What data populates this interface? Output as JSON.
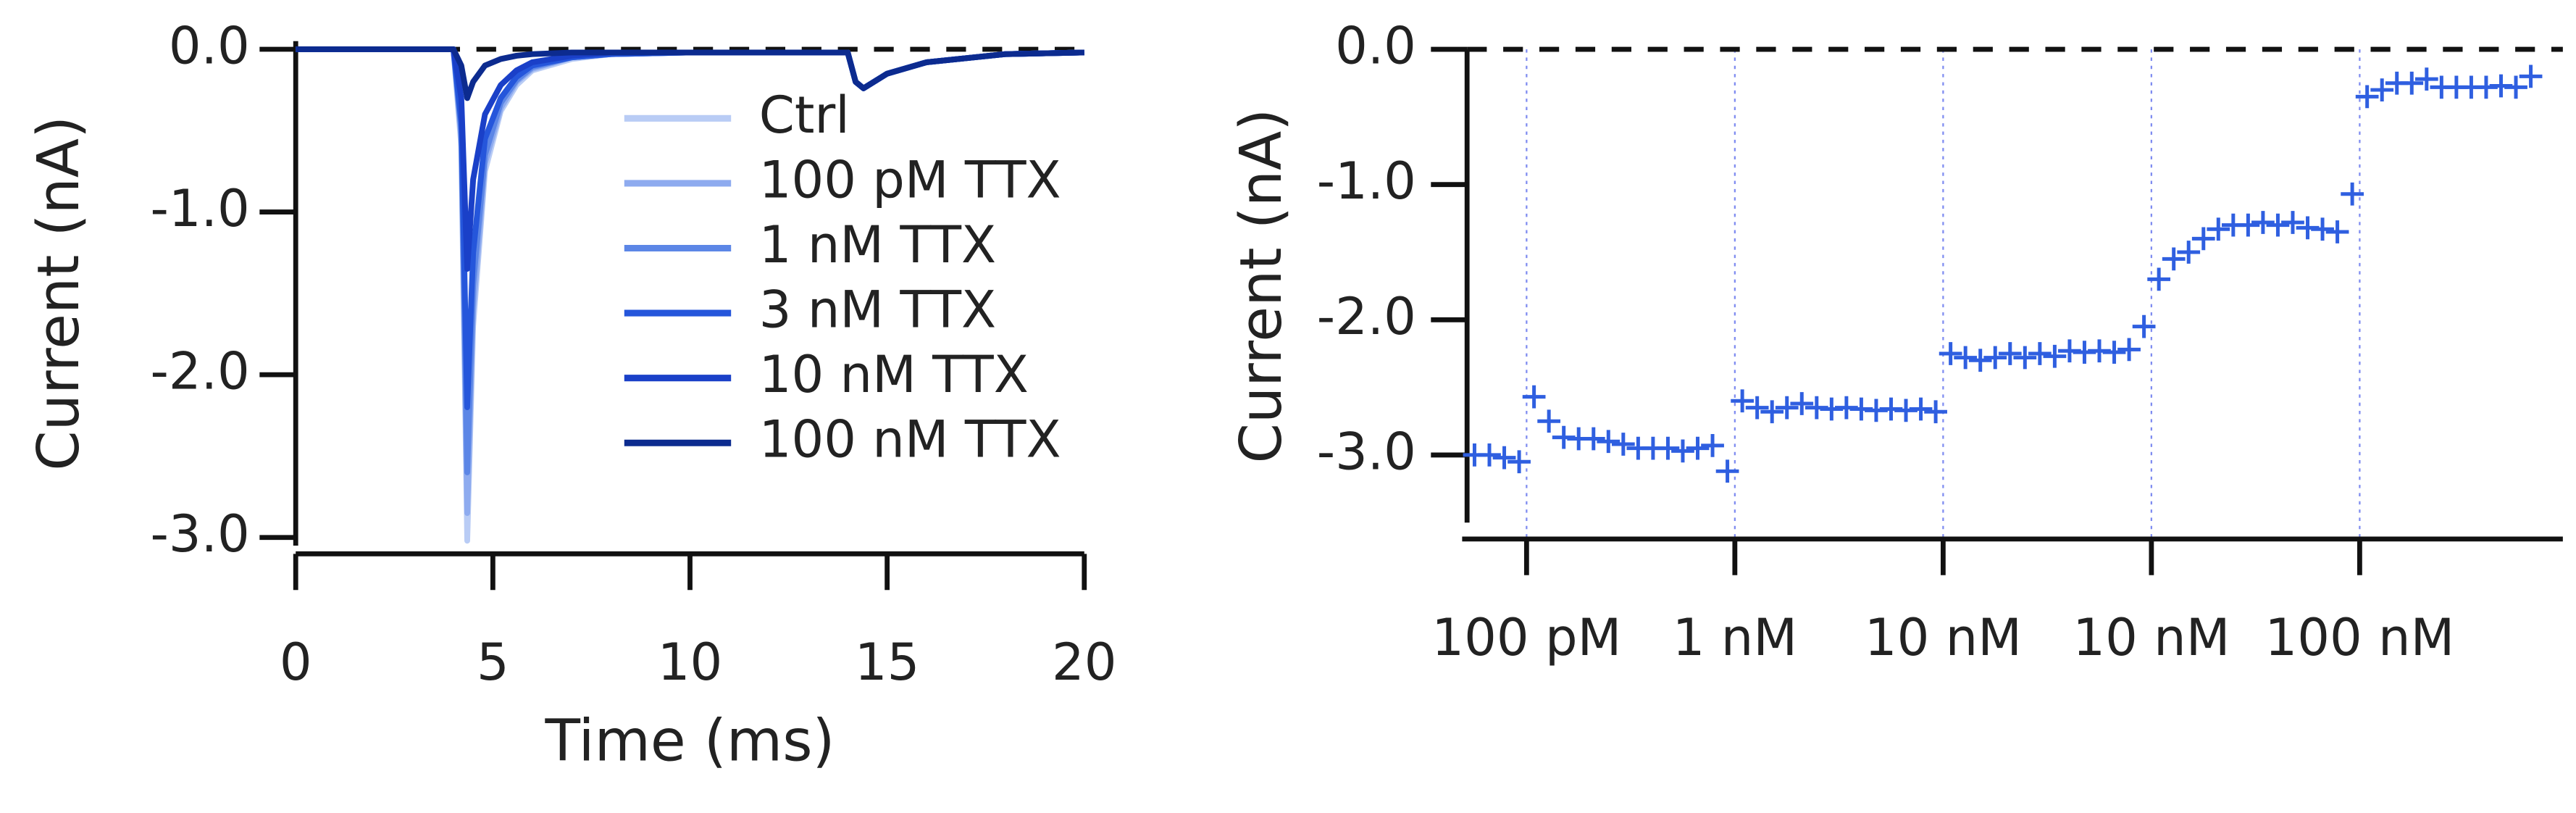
{
  "chart_data": [
    {
      "type": "line",
      "xlabel": "Time (ms)",
      "ylabel": "Current (nA)",
      "x": [
        0,
        4.0,
        4.2,
        4.35,
        4.5,
        4.8,
        5.2,
        5.6,
        6.0,
        7.0,
        8.0,
        10.0,
        14.0,
        14.2,
        14.4,
        15.0,
        16.0,
        18.0,
        20.0
      ],
      "series": [
        {
          "name": "Ctrl",
          "color": "#b9ccf5",
          "values": [
            0,
            0,
            -0.6,
            -3.02,
            -1.7,
            -0.75,
            -0.38,
            -0.22,
            -0.13,
            -0.06,
            -0.03,
            -0.02,
            -0.02,
            -0.2,
            -0.24,
            -0.15,
            -0.08,
            -0.03,
            -0.02
          ]
        },
        {
          "name": "100 pM TTX",
          "color": "#8eabef",
          "values": [
            0,
            0,
            -0.55,
            -2.85,
            -1.6,
            -0.7,
            -0.36,
            -0.2,
            -0.12,
            -0.05,
            -0.03,
            -0.02,
            -0.02,
            -0.2,
            -0.24,
            -0.15,
            -0.08,
            -0.03,
            -0.02
          ]
        },
        {
          "name": "1 nM TTX",
          "color": "#5c86e6",
          "values": [
            0,
            0,
            -0.5,
            -2.6,
            -1.45,
            -0.65,
            -0.33,
            -0.19,
            -0.11,
            -0.05,
            -0.03,
            -0.02,
            -0.02,
            -0.2,
            -0.24,
            -0.15,
            -0.08,
            -0.03,
            -0.02
          ]
        },
        {
          "name": "3 nM TTX",
          "color": "#2556db",
          "values": [
            0,
            0,
            -0.45,
            -2.2,
            -1.25,
            -0.55,
            -0.3,
            -0.17,
            -0.1,
            -0.05,
            -0.03,
            -0.02,
            -0.02,
            -0.2,
            -0.24,
            -0.15,
            -0.08,
            -0.03,
            -0.02
          ]
        },
        {
          "name": "10 nM TTX",
          "color": "#1a40c8",
          "values": [
            0,
            0,
            -0.3,
            -1.35,
            -0.8,
            -0.4,
            -0.22,
            -0.13,
            -0.08,
            -0.04,
            -0.02,
            -0.02,
            -0.02,
            -0.2,
            -0.24,
            -0.15,
            -0.08,
            -0.03,
            -0.02
          ]
        },
        {
          "name": "100 nM TTX",
          "color": "#0c2b8f",
          "values": [
            0,
            0,
            -0.1,
            -0.3,
            -0.2,
            -0.1,
            -0.06,
            -0.04,
            -0.03,
            -0.02,
            -0.02,
            -0.02,
            -0.02,
            -0.2,
            -0.24,
            -0.15,
            -0.08,
            -0.03,
            -0.02
          ]
        }
      ],
      "xlim": [
        0,
        20
      ],
      "xticks": [
        0,
        5,
        10,
        15,
        20
      ],
      "ylim": [
        -3.05,
        0.05
      ],
      "yticks": [
        {
          "value": 0,
          "label": "0.0"
        },
        {
          "value": -1,
          "label": "-1.0"
        },
        {
          "value": -2,
          "label": "-2.0"
        },
        {
          "value": -3,
          "label": "-3.0"
        }
      ],
      "zero_line": true,
      "legend": "upper right"
    },
    {
      "type": "scatter",
      "ylabel": "Current (nA)",
      "color": "#2f5fe0",
      "x": [
        0,
        1,
        2,
        3,
        4,
        5,
        6,
        7,
        8,
        9,
        10,
        11,
        12,
        13,
        14,
        15,
        16,
        17,
        18,
        19,
        20,
        21,
        22,
        23,
        24,
        25,
        26,
        27,
        28,
        29,
        30,
        31,
        32,
        33,
        34,
        35,
        36,
        37,
        38,
        39,
        40,
        41,
        42,
        43,
        44,
        45,
        46,
        47,
        48,
        49,
        50,
        51,
        52,
        53,
        54,
        55,
        56,
        57,
        58,
        59,
        60,
        61,
        62,
        63,
        64,
        65,
        66,
        67,
        68,
        69,
        70,
        71
      ],
      "values": [
        -3.0,
        -3.0,
        -3.02,
        -3.05,
        -2.57,
        -2.75,
        -2.87,
        -2.88,
        -2.88,
        -2.9,
        -2.92,
        -2.95,
        -2.95,
        -2.95,
        -2.97,
        -2.95,
        -2.93,
        -3.12,
        -2.6,
        -2.65,
        -2.68,
        -2.65,
        -2.62,
        -2.65,
        -2.66,
        -2.65,
        -2.66,
        -2.67,
        -2.66,
        -2.67,
        -2.66,
        -2.68,
        -2.25,
        -2.28,
        -2.3,
        -2.28,
        -2.25,
        -2.28,
        -2.25,
        -2.27,
        -2.23,
        -2.24,
        -2.23,
        -2.24,
        -2.22,
        -2.05,
        -1.7,
        -1.55,
        -1.5,
        -1.4,
        -1.33,
        -1.3,
        -1.3,
        -1.28,
        -1.3,
        -1.28,
        -1.32,
        -1.33,
        -1.35,
        -1.07,
        -0.35,
        -0.3,
        -0.25,
        -0.25,
        -0.22,
        -0.28,
        -0.28,
        -0.28,
        -0.28,
        -0.27,
        -0.28,
        -0.2
      ],
      "xlim": [
        -0.5,
        71.5
      ],
      "xticks": [
        {
          "value": 3.5,
          "label": "100 pM"
        },
        {
          "value": 17.5,
          "label": "1 nM"
        },
        {
          "value": 31.5,
          "label": "10 nM"
        },
        {
          "value": 45.5,
          "label": "10 nM"
        },
        {
          "value": 59.5,
          "label": "100 nM"
        }
      ],
      "ylim": [
        -3.5,
        0
      ],
      "yticks": [
        {
          "value": 0,
          "label": "0.0"
        },
        {
          "value": -1,
          "label": "-1.0"
        },
        {
          "value": -2,
          "label": "-2.0"
        },
        {
          "value": -3,
          "label": "-3.0"
        }
      ],
      "zero_line": true,
      "xgrid": true
    }
  ]
}
